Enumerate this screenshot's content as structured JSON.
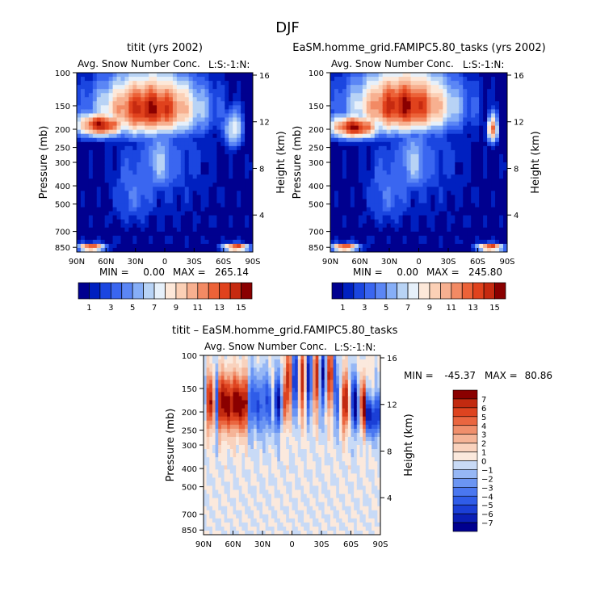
{
  "page_title": "DJF",
  "colors": {
    "diverging_scale": [
      "#00008f",
      "#0020c0",
      "#1b46e0",
      "#3a66f0",
      "#5b86f5",
      "#86aef7",
      "#b8d3f5",
      "#e6f0fa",
      "#fde8d9",
      "#fbd0b6",
      "#f7b090",
      "#f28a64",
      "#ec6238",
      "#e0421d",
      "#c62a10",
      "#8a0000"
    ],
    "diff_scale": [
      "#00008f",
      "#0b1fb5",
      "#1b3fd6",
      "#2f5ce8",
      "#4a77f0",
      "#6b95f3",
      "#96b7f5",
      "#c8daf6",
      "#fbe9dd",
      "#f9d2bd",
      "#f5b497",
      "#f08f6c",
      "#ea6640",
      "#de4420",
      "#c22a10",
      "#8a0000"
    ]
  },
  "chart_data": [
    {
      "id": "panel-1",
      "type": "heatmap",
      "title": "titit (yrs 2002)",
      "subtitle": "Avg. Snow Number Conc.",
      "corner_label": "L:S:-1:N:",
      "xlabel": "",
      "ylabel": "Pressure (mb)",
      "y2label": "Height (km)",
      "x_ticks": [
        "90N",
        "60N",
        "30N",
        "0",
        "30S",
        "60S",
        "90S"
      ],
      "x_tick_values": [
        90,
        60,
        30,
        0,
        -30,
        -60,
        -90
      ],
      "y_ticks": [
        "100",
        "150",
        "200",
        "250",
        "300",
        "400",
        "500",
        "700",
        "850"
      ],
      "y_tick_values": [
        100,
        150,
        200,
        250,
        300,
        400,
        500,
        700,
        850
      ],
      "y2_ticks": [
        "16",
        "12",
        "8",
        "4"
      ],
      "y2_tick_values": [
        16,
        12,
        8,
        4
      ],
      "ylim": [
        100,
        900
      ],
      "xlim": [
        90,
        -90
      ],
      "stats": {
        "min_label": "MIN =",
        "min": "0.00",
        "max_label": "MAX =",
        "max": "265.14"
      },
      "colorbar_labels": [
        "1",
        "3",
        "5",
        "7",
        "9",
        "11",
        "13",
        "15"
      ],
      "features": [
        {
          "lat": 15,
          "p": 155,
          "r_lat": 55,
          "r_p": 60,
          "v": 15
        },
        {
          "lat": 65,
          "p": 190,
          "r_lat": 28,
          "r_p": 30,
          "v": 15
        },
        {
          "lat": 75,
          "p": 850,
          "r_lat": 14,
          "r_p": 40,
          "v": 15
        },
        {
          "lat": -73,
          "p": 850,
          "r_lat": 14,
          "r_p": 40,
          "v": 15
        },
        {
          "lat": -70,
          "p": 200,
          "r_lat": 10,
          "r_p": 50,
          "v": 8
        },
        {
          "lat": 5,
          "p": 300,
          "r_lat": 20,
          "r_p": 140,
          "v": 6
        },
        {
          "lat": 30,
          "p": 420,
          "r_lat": 25,
          "r_p": 220,
          "v": 4
        }
      ]
    },
    {
      "id": "panel-2",
      "type": "heatmap",
      "title": "EaSM.homme_grid.FAMIPC5.80_tasks (yrs 2002)",
      "subtitle": "Avg. Snow Number Conc.",
      "corner_label": "L:S:-1:N:",
      "xlabel": "",
      "ylabel": "Pressure (mb)",
      "y2label": "Height (km)",
      "x_ticks": [
        "90N",
        "60N",
        "30N",
        "0",
        "30S",
        "60S",
        "90S"
      ],
      "x_tick_values": [
        90,
        60,
        30,
        0,
        -30,
        -60,
        -90
      ],
      "y_ticks": [
        "100",
        "150",
        "200",
        "250",
        "300",
        "400",
        "500",
        "700",
        "850"
      ],
      "y_tick_values": [
        100,
        150,
        200,
        250,
        300,
        400,
        500,
        700,
        850
      ],
      "y2_ticks": [
        "16",
        "12",
        "8",
        "4"
      ],
      "y2_tick_values": [
        16,
        12,
        8,
        4
      ],
      "ylim": [
        100,
        900
      ],
      "xlim": [
        90,
        -90
      ],
      "stats": {
        "min_label": "MIN =",
        "min": "0.00",
        "max_label": "MAX =",
        "max": "245.80"
      },
      "colorbar_labels": [
        "1",
        "3",
        "5",
        "7",
        "9",
        "11",
        "13",
        "15"
      ],
      "features": [
        {
          "lat": 15,
          "p": 150,
          "r_lat": 55,
          "r_p": 60,
          "v": 15
        },
        {
          "lat": 65,
          "p": 195,
          "r_lat": 28,
          "r_p": 30,
          "v": 15
        },
        {
          "lat": 75,
          "p": 850,
          "r_lat": 14,
          "r_p": 40,
          "v": 15
        },
        {
          "lat": -73,
          "p": 850,
          "r_lat": 14,
          "r_p": 40,
          "v": 15
        },
        {
          "lat": -75,
          "p": 200,
          "r_lat": 6,
          "r_p": 35,
          "v": 12
        },
        {
          "lat": 5,
          "p": 300,
          "r_lat": 20,
          "r_p": 140,
          "v": 6
        },
        {
          "lat": 30,
          "p": 420,
          "r_lat": 25,
          "r_p": 220,
          "v": 4
        }
      ]
    },
    {
      "id": "panel-diff",
      "type": "heatmap",
      "title": "titit – EaSM.homme_grid.FAMIPC5.80_tasks",
      "subtitle": "Avg. Snow Number Conc.",
      "corner_label": "L:S:-1:N:",
      "xlabel": "",
      "ylabel": "Pressure (mb)",
      "y2label": "Height (km)",
      "x_ticks": [
        "90N",
        "60N",
        "30N",
        "0",
        "30S",
        "60S",
        "90S"
      ],
      "x_tick_values": [
        90,
        60,
        30,
        0,
        -30,
        -60,
        -90
      ],
      "y_ticks": [
        "100",
        "150",
        "200",
        "250",
        "300",
        "400",
        "500",
        "700",
        "850"
      ],
      "y_tick_values": [
        100,
        150,
        200,
        250,
        300,
        400,
        500,
        700,
        850
      ],
      "y2_ticks": [
        "16",
        "12",
        "8",
        "4"
      ],
      "y2_tick_values": [
        16,
        12,
        8,
        4
      ],
      "ylim": [
        100,
        900
      ],
      "xlim": [
        90,
        -90
      ],
      "stats": {
        "min_label": "MIN =",
        "min": "-45.37",
        "max_label": "MAX =",
        "max": "80.86"
      },
      "colorbar_labels": [
        "7",
        "6",
        "5",
        "4",
        "3",
        "2",
        "1",
        "0",
        "−1",
        "−2",
        "−3",
        "−4",
        "−5",
        "−6",
        "−7"
      ]
    }
  ]
}
